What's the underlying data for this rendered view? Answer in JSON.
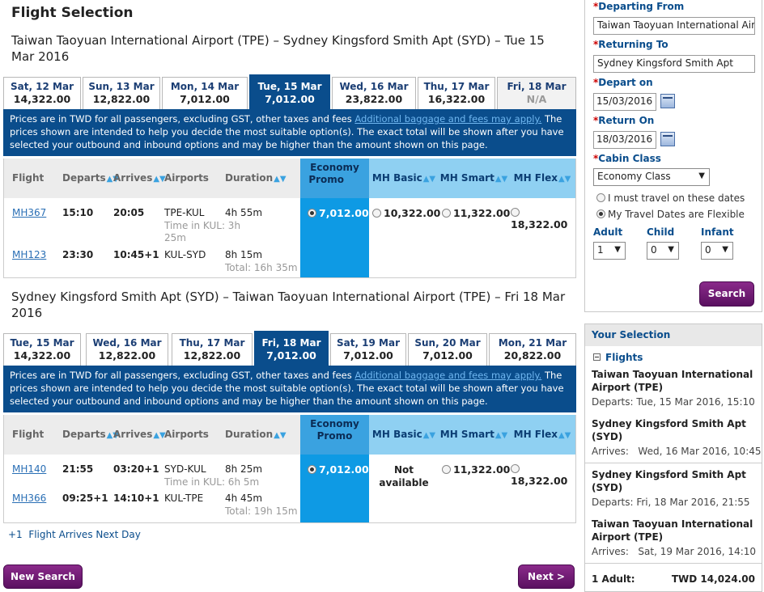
{
  "page_title": "Flight Selection",
  "outbound": {
    "route": "Taiwan Taoyuan International Airport (TPE) – Sydney Kingsford Smith Apt (SYD) – Tue 15 Mar 2016",
    "tabs": [
      {
        "date": "Sat, 12 Mar",
        "price": "14,322.00"
      },
      {
        "date": "Sun, 13 Mar",
        "price": "12,822.00"
      },
      {
        "date": "Mon, 14 Mar",
        "price": "7,012.00"
      },
      {
        "date": "Tue, 15 Mar",
        "price": "7,012.00"
      },
      {
        "date": "Wed, 16 Mar",
        "price": "23,822.00"
      },
      {
        "date": "Thu, 17 Mar",
        "price": "16,322.00"
      },
      {
        "date": "Fri, 18 Mar",
        "price": "N/A"
      }
    ],
    "flights": [
      {
        "no": "MH367",
        "dep": "15:10",
        "arr": "20:05",
        "route": "TPE-KUL",
        "dur": "4h 55m"
      },
      {
        "no": "MH123",
        "dep": "23:30",
        "arr": "10:45+1",
        "route": "KUL-SYD",
        "dur": "8h 15m"
      }
    ],
    "transit": "Time in KUL: 3h 25m",
    "total": "Total: 16h 35m",
    "prices": {
      "promo": "7,012.00",
      "basic": "10,322.00",
      "smart": "11,322.00",
      "flex": "18,322.00"
    }
  },
  "inbound": {
    "route": "Sydney Kingsford Smith Apt (SYD) – Taiwan Taoyuan International Airport (TPE) – Fri 18 Mar 2016",
    "tabs": [
      {
        "date": "Tue, 15 Mar",
        "price": "14,322.00"
      },
      {
        "date": "Wed, 16 Mar",
        "price": "12,822.00"
      },
      {
        "date": "Thu, 17 Mar",
        "price": "12,822.00"
      },
      {
        "date": "Fri, 18 Mar",
        "price": "7,012.00"
      },
      {
        "date": "Sat, 19 Mar",
        "price": "7,012.00"
      },
      {
        "date": "Sun, 20 Mar",
        "price": "7,012.00"
      },
      {
        "date": "Mon, 21 Mar",
        "price": "20,822.00"
      }
    ],
    "flights": [
      {
        "no": "MH140",
        "dep": "21:55",
        "arr": "03:20+1",
        "route": "SYD-KUL",
        "dur": "8h 25m"
      },
      {
        "no": "MH366",
        "dep": "09:25+1",
        "arr": "14:10+1",
        "route": "KUL-TPE",
        "dur": "4h 45m"
      }
    ],
    "transit": "Time in KUL: 6h 5m",
    "total": "Total: 19h 15m",
    "prices": {
      "promo": "7,012.00",
      "basic_na": "Not available",
      "smart": "11,322.00",
      "flex": "18,322.00"
    }
  },
  "notice": {
    "text1": "Prices are in TWD for all passengers, excluding GST, other taxes and fees",
    "link": "Additional baggage and fees may apply.",
    "text2": "The prices shown are intended to help you decide the most suitable option(s). The exact total will be shown after you have selected your outbound and inbound options and may be higher than the amount shown on this page."
  },
  "columns": {
    "flight": "Flight",
    "departs": "Departs",
    "arrives": "Arrives",
    "airports": "Airports",
    "duration": "Duration",
    "promo": "Economy Promo",
    "basic": "MH Basic",
    "smart": "MH Smart",
    "flex": "MH Flex"
  },
  "footnote": "+1  Flight Arrives Next Day",
  "buttons": {
    "new_search": "New Search",
    "next": "Next >",
    "search": "Search"
  },
  "search_form": {
    "departing_label": "Departing From",
    "departing_value": "Taiwan Taoyuan International Airport",
    "returning_label": "Returning To",
    "returning_value": "Sydney Kingsford Smith Apt",
    "depart_on_label": "Depart on",
    "depart_on_value": "15/03/2016",
    "return_on_label": "Return On",
    "return_on_value": "18/03/2016",
    "cabin_label": "Cabin Class",
    "cabin_value": "Economy Class",
    "opt_fixed": "I must travel on these dates",
    "opt_flexible": "My Travel Dates are Flexible",
    "adult_label": "Adult",
    "adult_value": "1",
    "child_label": "Child",
    "child_value": "0",
    "infant_label": "Infant",
    "infant_value": "0"
  },
  "your_selection": {
    "title": "Your Selection",
    "flights_label": "Flights",
    "o_from": "Taiwan Taoyuan International Airport (TPE)",
    "o_departs": "Departs: Tue, 15 Mar 2016, 15:10",
    "o_to": "Sydney Kingsford Smith Apt (SYD)",
    "o_arrives": "Arrives:   Wed, 16 Mar 2016, 10:45",
    "i_from": "Sydney Kingsford Smith Apt (SYD)",
    "i_departs": "Departs: Fri, 18 Mar 2016, 21:55",
    "i_to": "Taiwan Taoyuan International Airport (TPE)",
    "i_arrives": "Arrives:   Sat, 19 Mar 2016, 14:10",
    "adult_label": "1 Adult:",
    "total": "TWD 14,024.00"
  }
}
